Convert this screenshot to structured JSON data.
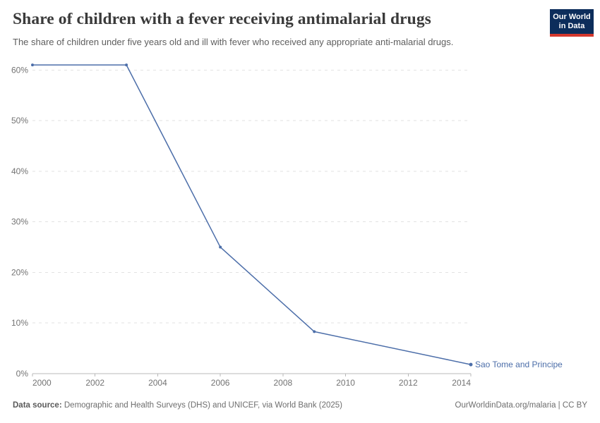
{
  "header": {
    "title": "Share of children with a fever receiving antimalarial drugs",
    "subtitle": "The share of children under five years old and ill with fever who received any appropriate anti-malarial drugs.",
    "logo": {
      "line1": "Our World",
      "line2": "in Data",
      "bg_color": "#0c2d5b",
      "accent_color": "#d4382d"
    }
  },
  "chart_data": {
    "type": "line",
    "title": "Share of children with a fever receiving antimalarial drugs",
    "subtitle": "The share of children under five years old and ill with fever who received any appropriate anti-malarial drugs.",
    "series": [
      {
        "name": "Sao Tome and Principe",
        "color": "#4c6ea9",
        "x": [
          2000,
          2003,
          2006,
          2009,
          2014
        ],
        "y": [
          61,
          61,
          25,
          8.3,
          1.8
        ]
      }
    ],
    "x_ticks": [
      2000,
      2002,
      2004,
      2006,
      2008,
      2010,
      2012,
      2014
    ],
    "y_ticks": [
      0,
      10,
      20,
      30,
      40,
      50,
      60
    ],
    "y_tick_suffix": "%",
    "xlim": [
      2000,
      2014
    ],
    "ylim": [
      0,
      61
    ],
    "grid": "horizontal-dashed",
    "legend_position": "end-of-line-label",
    "grid_color": "#e2e2e2",
    "axis_color": "#b8b8b8",
    "tick_label_color": "#737373"
  },
  "footer": {
    "source_label": "Data source:",
    "source_text": " Demographic and Health Surveys (DHS) and UNICEF, via World Bank (2025)",
    "credit": "OurWorldinData.org/malaria | CC BY"
  }
}
